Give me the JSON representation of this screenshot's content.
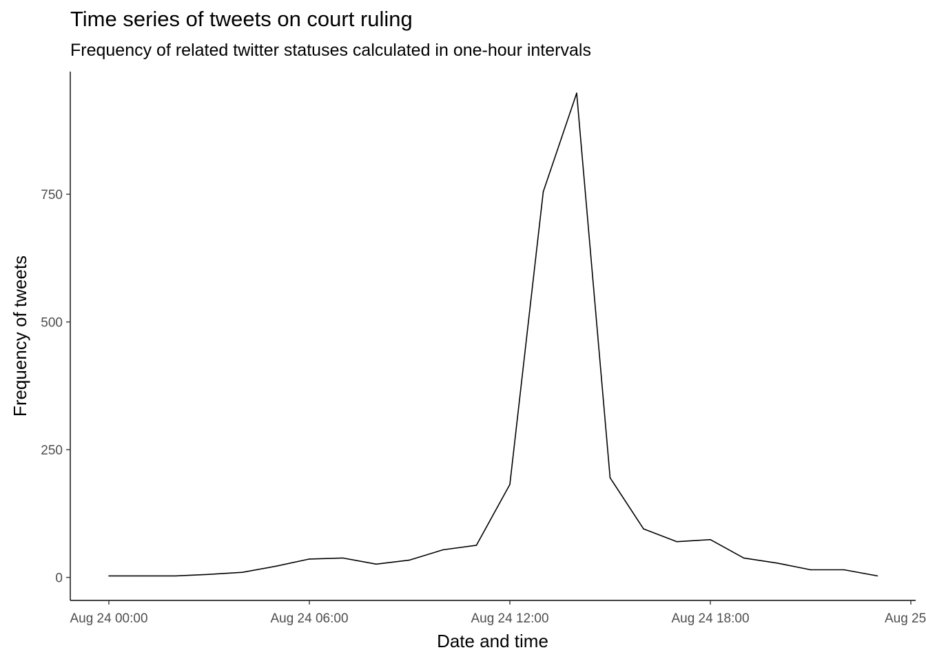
{
  "chart_data": {
    "type": "line",
    "title": "Time series of tweets on court ruling",
    "subtitle": "Frequency of related twitter statuses calculated in one-hour intervals",
    "xlabel": "Date and time",
    "ylabel": "Frequency of tweets",
    "x_axis": {
      "scale": "datetime",
      "range": [
        "Aug 24 00:00",
        "Aug 25 00:00"
      ],
      "tick_labels": [
        "Aug 24 00:00",
        "Aug 24 06:00",
        "Aug 24 12:00",
        "Aug 24 18:00",
        "Aug 25 0"
      ]
    },
    "y_axis": {
      "range": [
        -45,
        990
      ],
      "ticks": [
        0,
        250,
        500,
        750
      ],
      "tick_labels": [
        "0",
        "250",
        "500",
        "750"
      ]
    },
    "grid": false,
    "line_color": "#000000",
    "x": [
      "Aug 24 00:00",
      "Aug 24 01:00",
      "Aug 24 02:00",
      "Aug 24 03:00",
      "Aug 24 04:00",
      "Aug 24 05:00",
      "Aug 24 06:00",
      "Aug 24 07:00",
      "Aug 24 08:00",
      "Aug 24 09:00",
      "Aug 24 10:00",
      "Aug 24 11:00",
      "Aug 24 12:00",
      "Aug 24 13:00",
      "Aug 24 14:00",
      "Aug 24 15:00",
      "Aug 24 16:00",
      "Aug 24 17:00",
      "Aug 24 18:00",
      "Aug 24 19:00",
      "Aug 24 20:00",
      "Aug 24 21:00",
      "Aug 24 22:00",
      "Aug 24 23:00"
    ],
    "series": [
      {
        "values": [
          3,
          3,
          3,
          6,
          10,
          22,
          36,
          38,
          26,
          34,
          54,
          63,
          182,
          755,
          948,
          195,
          95,
          70,
          74,
          38,
          28,
          15,
          15,
          3
        ]
      }
    ]
  }
}
